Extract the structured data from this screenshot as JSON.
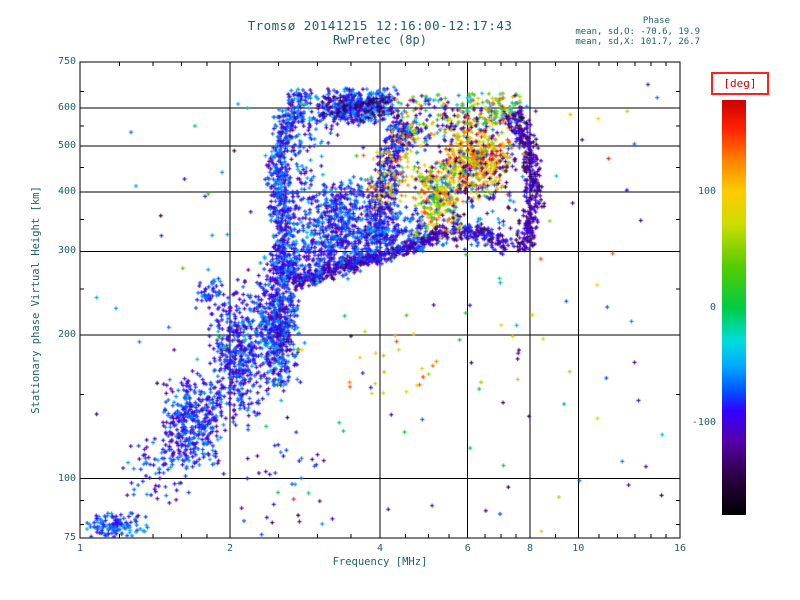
{
  "colors": {
    "text": "#1f5f6a",
    "axis": "#000000",
    "background": "#ffffff",
    "deg_border": "#ff2020",
    "deg_text": "#cc0000"
  },
  "chart_data": {
    "type": "scatter",
    "title": {
      "line1": "Tromsø 20141215 12:16:00-12:17:43",
      "line2": "RwPretec (8p)"
    },
    "stats": {
      "heading": "Phase",
      "line_o": "mean, sd,O: -70.6, 19.9",
      "line_x": "mean, sd,X: 101.7, 26.7"
    },
    "xlabel": "Frequency [MHz]",
    "ylabel": "Stationary phase Virtual Height [km]",
    "x_scale": "log",
    "y_scale": "log",
    "xlim": [
      1,
      16
    ],
    "ylim": [
      75,
      750
    ],
    "x_ticks": [
      1,
      2,
      4,
      6,
      8,
      10,
      16
    ],
    "x_gridlines": [
      2,
      4,
      6,
      8,
      10
    ],
    "x_minor_ticks": [
      1.2,
      1.4,
      1.6,
      1.8,
      2.5,
      3,
      3.5,
      4.5,
      5,
      5.5,
      6.5,
      7,
      7.5,
      9,
      11,
      12,
      13,
      14,
      15
    ],
    "y_ticks": [
      750,
      600,
      500,
      400,
      300,
      200,
      100,
      75
    ],
    "y_gridlines": [
      600,
      500,
      400,
      300,
      200,
      100
    ],
    "y_minor_ticks": [
      650,
      550,
      450,
      350,
      250,
      150,
      90,
      80
    ],
    "marker": "plus",
    "seed": 1337,
    "colorbar": {
      "title": "[deg]",
      "range": [
        -180,
        180
      ],
      "major_ticks": [
        100,
        0,
        -100
      ],
      "minor_ticks": [
        150,
        50,
        -50,
        -150
      ],
      "stops": [
        [
          0.0,
          "#000000"
        ],
        [
          0.1,
          "#30004a"
        ],
        [
          0.18,
          "#5500aa"
        ],
        [
          0.25,
          "#3300ff"
        ],
        [
          0.3,
          "#0055ff"
        ],
        [
          0.36,
          "#00aaff"
        ],
        [
          0.42,
          "#00dddd"
        ],
        [
          0.5,
          "#00cc44"
        ],
        [
          0.6,
          "#55cc00"
        ],
        [
          0.7,
          "#ccdd00"
        ],
        [
          0.78,
          "#ffcc00"
        ],
        [
          0.85,
          "#ff8800"
        ],
        [
          0.93,
          "#ff2200"
        ],
        [
          1.0,
          "#cc0000"
        ]
      ]
    },
    "clusters": [
      {
        "name": "bottom-left-clump",
        "type": "blob",
        "count": 130,
        "f": [
          1.02,
          1.38
        ],
        "h": [
          74,
          86
        ],
        "phase": [
          -100,
          -45
        ]
      },
      {
        "name": "bottom-left-rise",
        "type": "blob",
        "count": 70,
        "f": [
          1.2,
          1.7
        ],
        "h": [
          85,
          130
        ],
        "phase": [
          -110,
          -50
        ]
      },
      {
        "name": "lower-cloud-left",
        "type": "blob",
        "count": 380,
        "f": [
          1.45,
          1.98
        ],
        "h": [
          103,
          170
        ],
        "phase": [
          -120,
          -50
        ]
      },
      {
        "name": "lower-cloud-right",
        "type": "blob",
        "count": 480,
        "f": [
          1.8,
          2.4
        ],
        "h": [
          125,
          270
        ],
        "phase": [
          -120,
          -50
        ]
      },
      {
        "name": "left-mid-clump",
        "type": "blob",
        "count": 45,
        "f": [
          1.7,
          1.95
        ],
        "h": [
          225,
          268
        ],
        "phase": [
          -110,
          -55
        ]
      },
      {
        "name": "mid-column",
        "type": "blob",
        "count": 650,
        "f": [
          2.25,
          2.8
        ],
        "h": [
          150,
          310
        ],
        "phase": [
          -125,
          -45
        ]
      },
      {
        "name": "bottom-mid-sparse",
        "type": "blob",
        "dist": "uniform",
        "count": 30,
        "f": [
          2.1,
          3.1
        ],
        "h": [
          75,
          130
        ],
        "phase": [
          -120,
          -50
        ]
      },
      {
        "name": "leading-edge-band",
        "type": "path",
        "count": 520,
        "nodes": [
          [
            2.62,
            262
          ],
          [
            2.54,
            340
          ],
          [
            2.5,
            430
          ],
          [
            2.55,
            520
          ],
          [
            2.66,
            595
          ],
          [
            2.85,
            645
          ]
        ],
        "width": 15,
        "phase": [
          -120,
          -45
        ]
      },
      {
        "name": "leading-edge-diffuse",
        "type": "path",
        "count": 260,
        "nodes": [
          [
            2.75,
            270
          ],
          [
            2.7,
            350
          ],
          [
            2.68,
            440
          ],
          [
            2.75,
            530
          ],
          [
            2.9,
            600
          ]
        ],
        "width": 34,
        "phase": [
          -115,
          -45
        ]
      },
      {
        "name": "top-arc",
        "type": "blob",
        "count": 430,
        "f": [
          2.85,
          4.55
        ],
        "h": [
          550,
          665
        ],
        "phase": [
          -120,
          -40
        ]
      },
      {
        "name": "top-arc-dark",
        "type": "blob",
        "count": 70,
        "f": [
          2.9,
          4.5
        ],
        "h": [
          560,
          655
        ],
        "phase": [
          -160,
          -110
        ]
      },
      {
        "name": "inner-right-band",
        "type": "path",
        "count": 420,
        "nodes": [
          [
            4.5,
            560
          ],
          [
            4.3,
            490
          ],
          [
            4.12,
            420
          ],
          [
            4.02,
            360
          ],
          [
            3.98,
            312
          ]
        ],
        "width": 18,
        "phase": [
          -135,
          -55
        ]
      },
      {
        "name": "inner-right-warm",
        "type": "path",
        "count": 90,
        "nodes": [
          [
            4.55,
            555
          ],
          [
            4.35,
            485
          ],
          [
            4.18,
            420
          ],
          [
            4.08,
            365
          ]
        ],
        "width": 26,
        "phase": [
          50,
          150
        ]
      },
      {
        "name": "lower-edge-sharp",
        "type": "path",
        "count": 430,
        "nodes": [
          [
            2.66,
            258
          ],
          [
            3.2,
            272
          ],
          [
            3.75,
            288
          ],
          [
            4.3,
            300
          ],
          [
            4.9,
            315
          ],
          [
            5.5,
            332
          ]
        ],
        "width": 9,
        "phase": [
          -145,
          -75
        ]
      },
      {
        "name": "lower-edge-diffuse",
        "type": "path",
        "count": 320,
        "nodes": [
          [
            2.7,
            278
          ],
          [
            3.25,
            292
          ],
          [
            3.8,
            308
          ],
          [
            4.35,
            322
          ],
          [
            4.95,
            338
          ]
        ],
        "width": 26,
        "phase": [
          -115,
          -50
        ]
      },
      {
        "name": "lower-edge-extension",
        "type": "path",
        "count": 130,
        "nodes": [
          [
            5.5,
            332
          ],
          [
            6.1,
            330
          ],
          [
            6.7,
            320
          ],
          [
            7.2,
            305
          ]
        ],
        "width": 10,
        "phase": [
          -140,
          -70
        ]
      },
      {
        "name": "inner-fill",
        "type": "blob",
        "count": 420,
        "f": [
          2.75,
          4.05
        ],
        "h": [
          275,
          440
        ],
        "phase": [
          -120,
          -45
        ]
      },
      {
        "name": "upper-mid-mix",
        "type": "blob",
        "dist": "uniform",
        "count": 90,
        "f": [
          4.4,
          5.6
        ],
        "h": [
          520,
          640
        ],
        "phase": [
          -130,
          150
        ]
      },
      {
        "name": "x-lobe-core",
        "type": "blob",
        "count": 430,
        "f": [
          5.3,
          7.4
        ],
        "h": [
          385,
          570
        ],
        "phase": [
          30,
          170
        ]
      },
      {
        "name": "x-lobe-left",
        "type": "blob",
        "count": 260,
        "f": [
          4.6,
          5.9
        ],
        "h": [
          320,
          470
        ],
        "phase": [
          10,
          150
        ]
      },
      {
        "name": "x-lobe-blue-mix",
        "type": "blob",
        "dist": "uniform",
        "count": 300,
        "f": [
          4.7,
          7.9
        ],
        "h": [
          300,
          610
        ],
        "phase": [
          -145,
          -50
        ]
      },
      {
        "name": "x-lobe-top",
        "type": "blob",
        "dist": "uniform",
        "count": 130,
        "f": [
          5.7,
          7.7
        ],
        "h": [
          555,
          645
        ],
        "phase": [
          -60,
          170
        ]
      },
      {
        "name": "right-edge-arc",
        "type": "path",
        "count": 330,
        "nodes": [
          [
            7.35,
            585
          ],
          [
            7.8,
            525
          ],
          [
            8.1,
            455
          ],
          [
            8.18,
            390
          ],
          [
            8.0,
            335
          ],
          [
            7.6,
            300
          ]
        ],
        "width": 12,
        "phase": [
          -155,
          -85
        ]
      },
      {
        "name": "warm-lower-singles",
        "type": "blob",
        "dist": "uniform",
        "count": 22,
        "f": [
          3.3,
          5.2
        ],
        "h": [
          150,
          205
        ],
        "phase": [
          60,
          150
        ]
      },
      {
        "name": "green-scatter",
        "type": "blob",
        "dist": "uniform",
        "count": 30,
        "f": [
          1.5,
          7.5
        ],
        "h": [
          90,
          650
        ],
        "phase": [
          -20,
          30
        ]
      },
      {
        "name": "outliers-blue",
        "type": "blob",
        "dist": "uniform",
        "count": 110,
        "f": [
          1.05,
          15
        ],
        "h": [
          80,
          700
        ],
        "phase": [
          -150,
          -40
        ]
      },
      {
        "name": "outliers-warm",
        "type": "blob",
        "dist": "uniform",
        "count": 28,
        "f": [
          2.2,
          14
        ],
        "h": [
          75,
          640
        ],
        "phase": [
          40,
          170
        ]
      }
    ]
  }
}
